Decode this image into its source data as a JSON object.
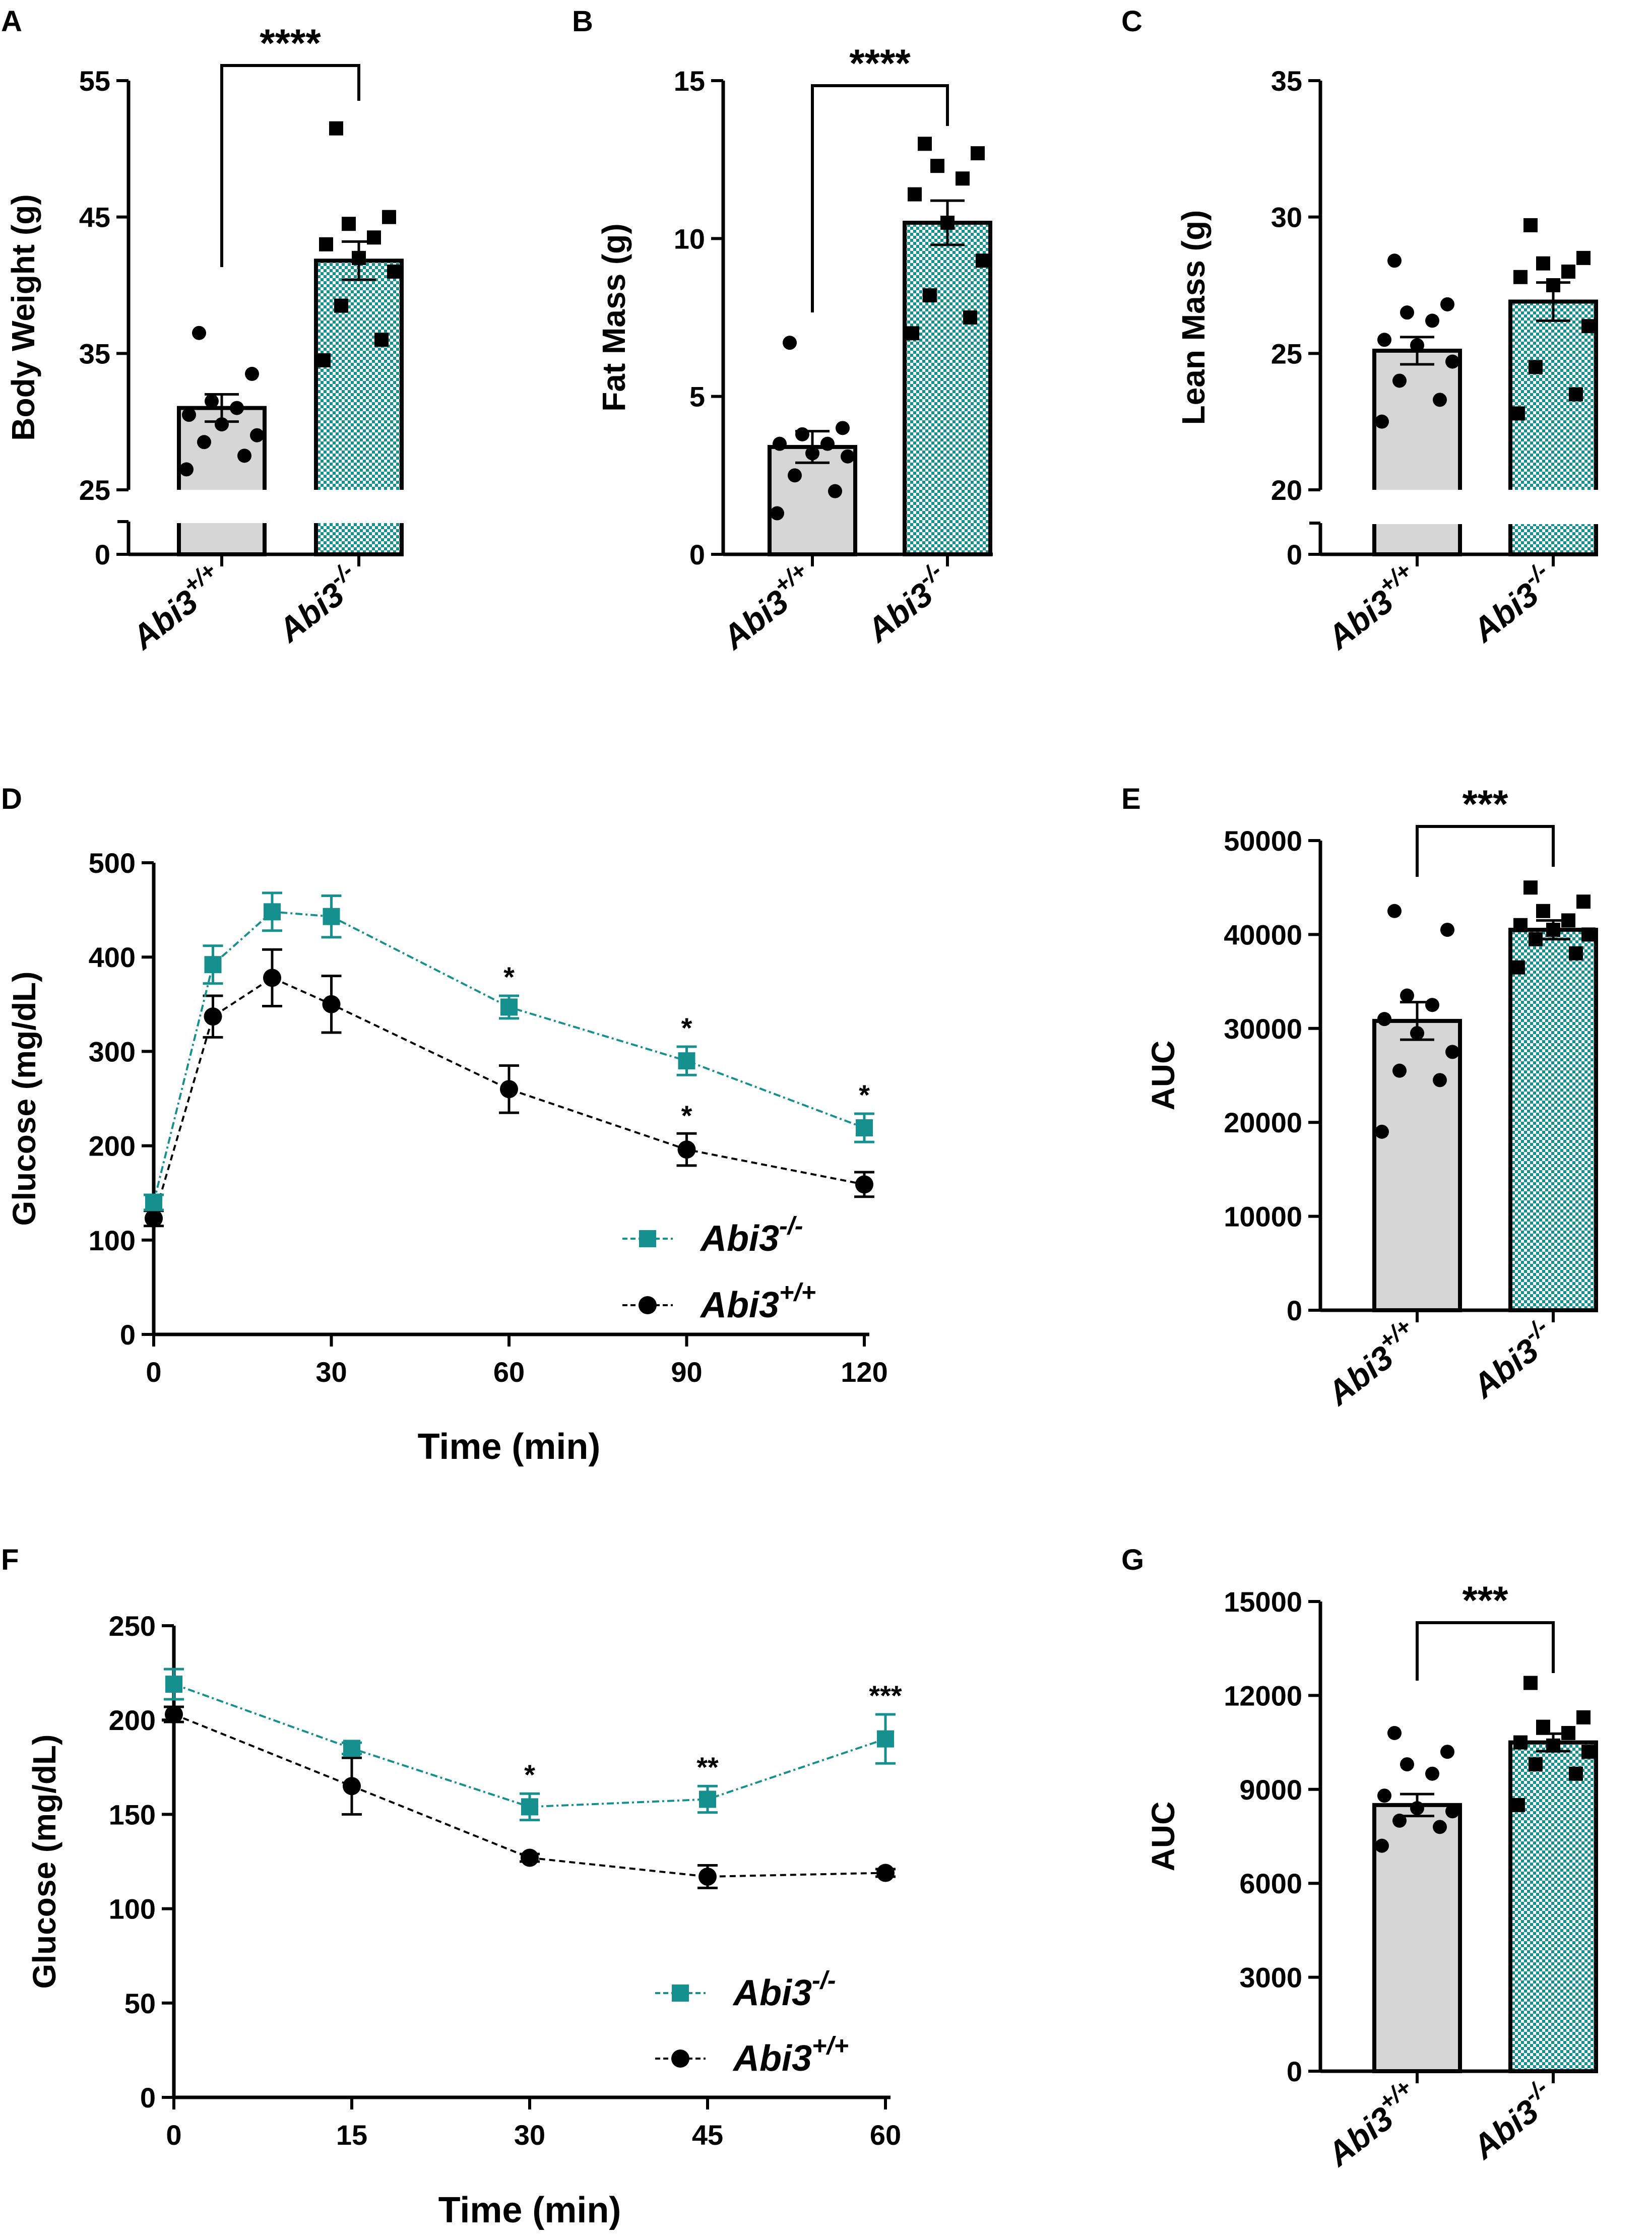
{
  "colors": {
    "ko": "#16908f",
    "wt_bar": "#d6d6d6",
    "ink": "#000000"
  },
  "chart_data": [
    {
      "panel": "A",
      "type": "bar",
      "title": "",
      "ylabel": "Body Weight  (g)",
      "categories": [
        "Abi3",
        "Abi3"
      ],
      "category_superscripts": [
        "+/+",
        "-/-"
      ],
      "values": [
        31.0,
        41.8
      ],
      "sem": [
        1.0,
        1.4
      ],
      "yticks": [
        0,
        25,
        35,
        45,
        55
      ],
      "ylim": [
        25,
        55
      ],
      "axis_break": true,
      "points": [
        [
          26.5,
          27.5,
          28.5,
          29.0,
          29.8,
          30.5,
          31.0,
          31.5,
          33.5,
          36.5
        ],
        [
          34.5,
          36.0,
          38.5,
          41.0,
          42.0,
          43.0,
          43.5,
          44.5,
          45.0,
          51.5
        ]
      ],
      "significance": "****"
    },
    {
      "panel": "B",
      "type": "bar",
      "ylabel": "Fat Mass (g)",
      "categories": [
        "Abi3",
        "Abi3"
      ],
      "category_superscripts": [
        "+/+",
        "-/-"
      ],
      "values": [
        3.4,
        10.5
      ],
      "sem": [
        0.5,
        0.7
      ],
      "yticks": [
        0,
        5,
        10,
        15
      ],
      "ylim": [
        0,
        15
      ],
      "points": [
        [
          1.3,
          2.0,
          2.5,
          3.1,
          3.2,
          3.5,
          3.5,
          3.8,
          4.0,
          6.7
        ],
        [
          7.0,
          7.5,
          8.2,
          9.3,
          10.5,
          11.4,
          11.9,
          12.3,
          12.7,
          13.0
        ]
      ],
      "significance": "****"
    },
    {
      "panel": "C",
      "type": "bar",
      "ylabel": "Lean Mass (g)",
      "categories": [
        "Abi3",
        "Abi3"
      ],
      "category_superscripts": [
        "+/+",
        "-/-"
      ],
      "values": [
        25.1,
        26.9
      ],
      "sem": [
        0.5,
        0.7
      ],
      "yticks": [
        0,
        20,
        25,
        30,
        35
      ],
      "ylim": [
        20,
        35
      ],
      "axis_break": true,
      "points": [
        [
          22.5,
          23.3,
          24.0,
          24.7,
          25.3,
          25.5,
          26.2,
          26.5,
          26.8,
          28.4
        ],
        [
          22.8,
          23.5,
          24.5,
          26.0,
          27.5,
          27.8,
          28.0,
          28.3,
          28.5,
          29.7
        ]
      ]
    },
    {
      "panel": "D",
      "type": "line",
      "xlabel": "Time (min)",
      "ylabel": "Glucose (mg/dL)",
      "x": [
        0,
        10,
        20,
        30,
        60,
        90,
        120
      ],
      "xticks": [
        0,
        30,
        60,
        90,
        120
      ],
      "xlim": [
        0,
        120
      ],
      "yticks": [
        0,
        100,
        200,
        300,
        400,
        500
      ],
      "ylim": [
        0,
        500
      ],
      "series": [
        {
          "name": "Abi3",
          "superscript": "-/-",
          "marker": "square",
          "values": [
            140,
            392,
            448,
            443,
            347,
            290,
            219
          ],
          "err": [
            8,
            20,
            20,
            22,
            12,
            15,
            15
          ]
        },
        {
          "name": "Abi3",
          "superscript": "+/+",
          "marker": "circle",
          "values": [
            123,
            337,
            378,
            350,
            260,
            196,
            159
          ],
          "err": [
            8,
            22,
            30,
            30,
            25,
            17,
            13
          ]
        }
      ],
      "annotations": [
        {
          "x": 60,
          "text": "*"
        },
        {
          "x": 90,
          "text": "*"
        },
        {
          "x": 90,
          "text": "*"
        },
        {
          "x": 120,
          "text": "*"
        }
      ],
      "legend": "bottom-right"
    },
    {
      "panel": "E",
      "type": "bar",
      "ylabel": "AUC",
      "categories": [
        "Abi3",
        "Abi3"
      ],
      "category_superscripts": [
        "+/+",
        "-/-"
      ],
      "values": [
        30800,
        40500
      ],
      "sem": [
        2000,
        1000
      ],
      "yticks": [
        0,
        10000,
        20000,
        30000,
        40000,
        50000
      ],
      "ylim": [
        0,
        50000
      ],
      "points": [
        [
          19000,
          24500,
          25500,
          27500,
          29500,
          31000,
          32500,
          33500,
          40500,
          42500
        ],
        [
          36500,
          38000,
          39500,
          40000,
          40500,
          41000,
          41500,
          42500,
          43500,
          45000
        ]
      ],
      "significance": "***"
    },
    {
      "panel": "F",
      "type": "line",
      "xlabel": "Time (min)",
      "ylabel": "Glucose (mg/dL)",
      "x": [
        0,
        15,
        30,
        45,
        60
      ],
      "xticks": [
        0,
        15,
        30,
        45,
        60
      ],
      "xlim": [
        0,
        60
      ],
      "yticks": [
        0,
        50,
        100,
        150,
        200,
        250
      ],
      "ylim": [
        0,
        250
      ],
      "series": [
        {
          "name": "Abi3",
          "superscript": "-/-",
          "marker": "square",
          "values": [
            219,
            185,
            154,
            158,
            190
          ],
          "err": [
            8,
            3,
            7,
            7,
            13
          ]
        },
        {
          "name": "Abi3",
          "superscript": "+/+",
          "marker": "circle",
          "values": [
            203,
            165,
            127,
            117,
            119
          ],
          "err": [
            4,
            15,
            2,
            6,
            2
          ]
        }
      ],
      "annotations": [
        {
          "x": 30,
          "text": "*"
        },
        {
          "x": 45,
          "text": "**"
        },
        {
          "x": 60,
          "text": "***"
        }
      ],
      "legend": "bottom-right"
    },
    {
      "panel": "G",
      "type": "bar",
      "ylabel": "AUC",
      "categories": [
        "Abi3",
        "Abi3"
      ],
      "category_superscripts": [
        "+/+",
        "-/-"
      ],
      "values": [
        8500,
        10500
      ],
      "sem": [
        350,
        280
      ],
      "yticks": [
        0,
        3000,
        6000,
        9000,
        12000,
        15000
      ],
      "ylim": [
        0,
        15000
      ],
      "points": [
        [
          7200,
          7800,
          8000,
          8300,
          8400,
          8800,
          9500,
          9800,
          10200,
          10800
        ],
        [
          8500,
          9500,
          9800,
          10200,
          10400,
          10500,
          10800,
          11000,
          11300,
          12400
        ]
      ],
      "significance": "***"
    }
  ]
}
